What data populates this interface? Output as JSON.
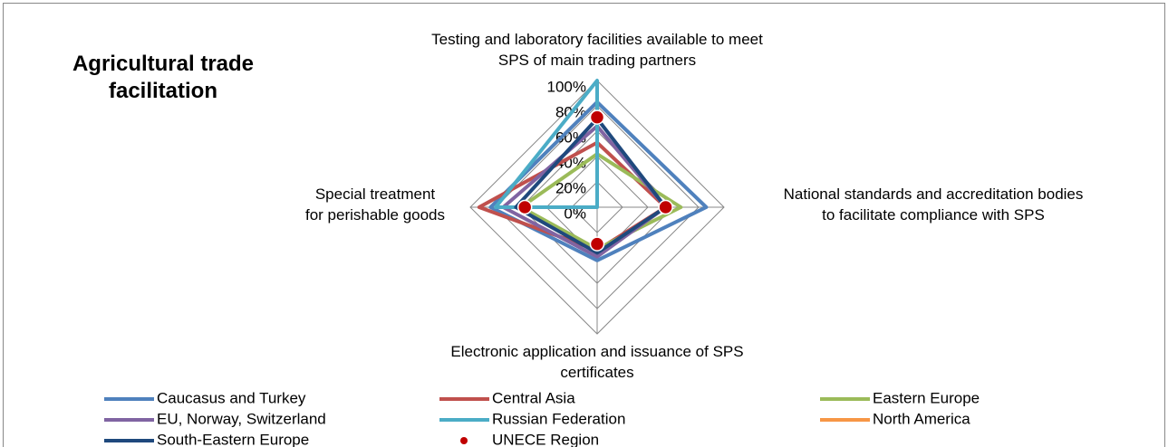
{
  "chart_data": {
    "type": "radar",
    "title": "Agricultural trade facilitation",
    "categories": [
      "Testing and laboratory facilities available to meet SPS of main trading partners",
      "National standards and accreditation bodies to facilitate compliance with SPS",
      "Electronic application and issuance of SPS certificates",
      "Special treatment for perishable goods"
    ],
    "rlim": [
      0,
      100
    ],
    "rticks": [
      {
        "value": 0,
        "label": "0%"
      },
      {
        "value": 20,
        "label": "20%"
      },
      {
        "value": 40,
        "label": "40%"
      },
      {
        "value": 60,
        "label": "60%"
      },
      {
        "value": 80,
        "label": "80%"
      },
      {
        "value": 100,
        "label": "100%"
      }
    ],
    "series": [
      {
        "name": "Caucasus and Turkey",
        "color": "#4f81bd",
        "values": [
          83,
          86,
          42,
          84
        ]
      },
      {
        "name": "Central Asia",
        "color": "#c0504d",
        "values": [
          51,
          54,
          34,
          93
        ]
      },
      {
        "name": "Eastern Europe",
        "color": "#9bbb59",
        "values": [
          42,
          66,
          33,
          60
        ]
      },
      {
        "name": "EU, Norway, Switzerland",
        "color": "#8064a2",
        "values": [
          64,
          54,
          39,
          74
        ]
      },
      {
        "name": "Russian Federation",
        "color": "#4bacc6",
        "values": [
          100,
          0,
          0,
          80
        ]
      },
      {
        "name": "North America",
        "color": "#f79646",
        "values": [
          null,
          null,
          null,
          null
        ]
      },
      {
        "name": "South-Eastern Europe",
        "color": "#1f497d",
        "values": [
          70,
          54,
          36,
          64
        ]
      },
      {
        "name": "UNECE Region",
        "color": "#c00000",
        "marker": "dot",
        "values": [
          71,
          54,
          29,
          57
        ]
      }
    ]
  }
}
